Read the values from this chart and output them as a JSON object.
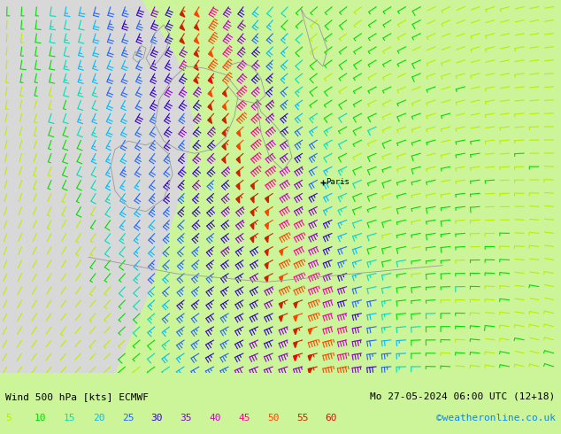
{
  "title_left": "Wind 500 hPa [kts] ECMWF",
  "title_right": "Mo 27-05-2024 06:00 UTC (12+18)",
  "copyright": "©weatheronline.co.uk",
  "legend_values": [
    5,
    10,
    15,
    20,
    25,
    30,
    35,
    40,
    45,
    50,
    55,
    60
  ],
  "legend_colors": [
    "#bbee00",
    "#00dd00",
    "#00ddbb",
    "#00bbff",
    "#2266ff",
    "#3300cc",
    "#8800cc",
    "#cc00cc",
    "#ff0099",
    "#ff4400",
    "#cc2200",
    "#ff0000"
  ],
  "bg_left_color": "#d8d8d8",
  "bg_right_color": "#ccf59a",
  "title_color": "#000000",
  "copyright_color": "#0088ff",
  "coast_color": "#999999",
  "paris_color": "#000000",
  "figsize": [
    6.34,
    4.9
  ],
  "dpi": 100,
  "bottom_strip_color": "#ccf59a"
}
